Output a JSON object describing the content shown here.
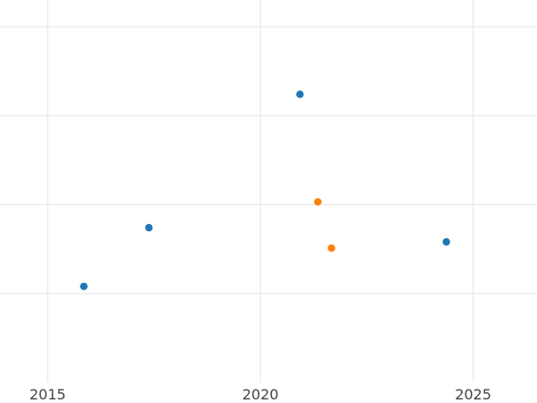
{
  "chart_data": {
    "type": "scatter",
    "title": "",
    "xlabel": "",
    "ylabel": "",
    "xlim": [
      2013.88,
      2026.5
    ],
    "ylim": [
      0,
      4.2
    ],
    "x_ticks": [
      2015,
      2020,
      2025
    ],
    "x_tick_labels": [
      "2015",
      "2020",
      "2025"
    ],
    "y_grid": [
      1,
      2,
      3,
      4
    ],
    "grid": true,
    "legend": "none",
    "series": [
      {
        "color": "#1f77b4",
        "points": [
          {
            "x": 2015.85,
            "y": 1.08
          },
          {
            "x": 2017.38,
            "y": 1.74
          },
          {
            "x": 2020.93,
            "y": 3.24
          },
          {
            "x": 2024.37,
            "y": 1.58
          }
        ]
      },
      {
        "color": "#ff7f0e",
        "points": [
          {
            "x": 2021.35,
            "y": 2.03
          },
          {
            "x": 2021.67,
            "y": 1.51
          }
        ]
      }
    ]
  }
}
